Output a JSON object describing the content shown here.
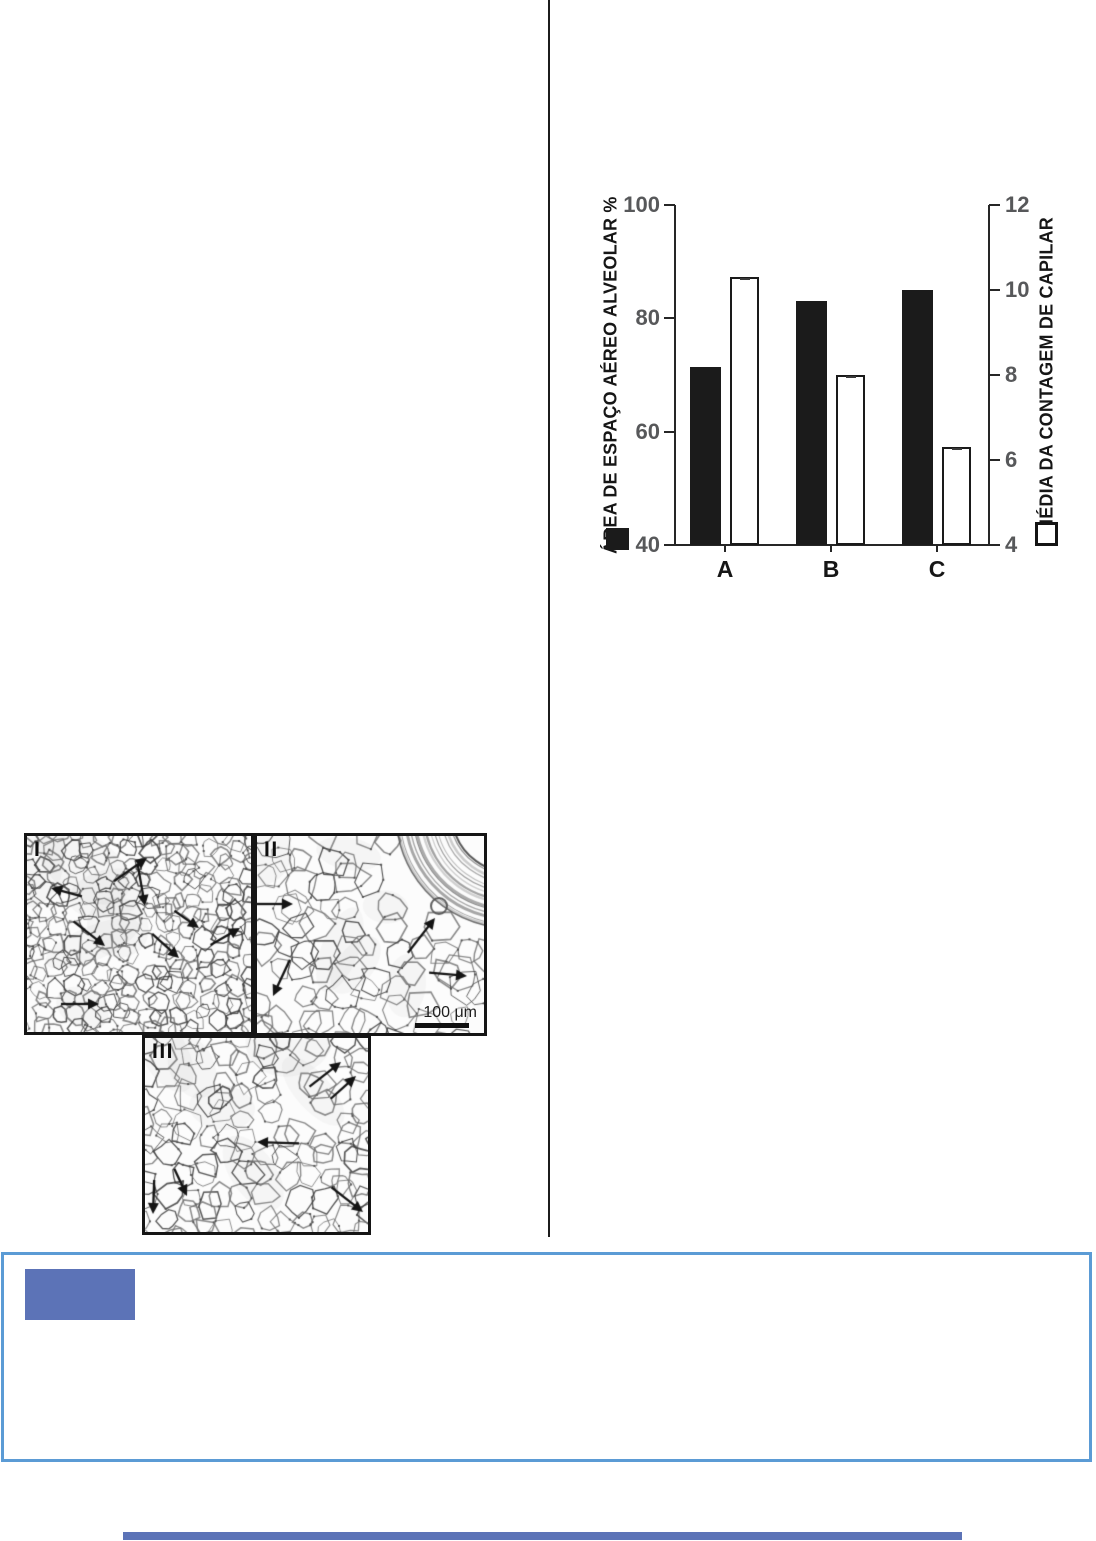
{
  "chart_data": {
    "type": "bar",
    "title": "",
    "categories": [
      "A",
      "B",
      "C"
    ],
    "series": [
      {
        "name": "ÁREA DE ESPAÇO AÉREO ALVEOLAR %",
        "axis": "left",
        "style": "filled",
        "color": "#1b1b1b",
        "values": [
          71.5,
          83,
          85
        ]
      },
      {
        "name": "MÉDIA DA CONTAGEM DE CAPILAR",
        "axis": "right",
        "style": "outlined",
        "color": "#ffffff",
        "values": [
          10.3,
          8.0,
          6.3
        ]
      }
    ],
    "left_axis": {
      "label": "ÁREA DE ESPAÇO AÉREO ALVEOLAR %",
      "min": 40,
      "max": 100,
      "ticks": [
        40,
        60,
        80,
        100
      ]
    },
    "right_axis": {
      "label": "MÉDIA DA CONTAGEM DE CAPILAR",
      "min": 4,
      "max": 12,
      "ticks": [
        4,
        6,
        8,
        10,
        12
      ]
    },
    "legend": [
      {
        "marker": "filled-black-square",
        "series": "ÁREA DE ESPAÇO AÉREO ALVEOLAR %",
        "position": "bottom-left"
      },
      {
        "marker": "open-white-square",
        "series": "MÉDIA DA CONTAGEM DE CAPILAR",
        "position": "bottom-right"
      }
    ],
    "grid": false,
    "legend_position": "axis-ends"
  },
  "micrographs": {
    "panels": [
      {
        "label": "I"
      },
      {
        "label": "II",
        "scale_bar_label": "100 μm"
      },
      {
        "label": "III"
      }
    ]
  },
  "callout": {
    "border_color": "#5b9bd5",
    "accent_color": "#5c73b7"
  },
  "footer": {
    "bar_color": "#5c73b7"
  }
}
